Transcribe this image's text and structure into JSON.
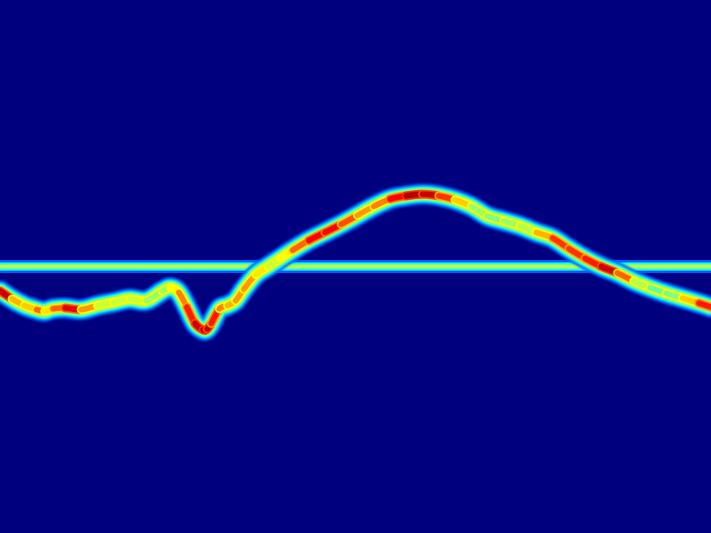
{
  "chart_data": {
    "type": "heatmap",
    "colormap": "jet",
    "background_color": "#00007f",
    "baseline": {
      "y": 0
    },
    "x": [
      0,
      15,
      30,
      45,
      55,
      65,
      80,
      100,
      120,
      140,
      160,
      180,
      200,
      210,
      220,
      230,
      240,
      250,
      255,
      260,
      270,
      280,
      290,
      300,
      315,
      330,
      345,
      360,
      380,
      400,
      420,
      440,
      460,
      480,
      500,
      520,
      540,
      560,
      580,
      600,
      620,
      640,
      660,
      680,
      700,
      720,
      740,
      760,
      780,
      800,
      820,
      840,
      860,
      875
    ],
    "y": [
      -30,
      -40,
      -48,
      -53,
      -55,
      -52,
      -51,
      -53,
      -48,
      -44,
      -40,
      -42,
      -30,
      -26,
      -32,
      -50,
      -70,
      -78,
      -77,
      -70,
      -52,
      -48,
      -42,
      -28,
      -10,
      0,
      10,
      20,
      32,
      42,
      52,
      63,
      74,
      83,
      87,
      89,
      87,
      82,
      74,
      62,
      56,
      50,
      42,
      35,
      22,
      10,
      0,
      -8,
      -18,
      -26,
      -33,
      -39,
      -45,
      -50
    ],
    "intensity": [
      0.95,
      0.9,
      0.5,
      0.85,
      0.7,
      0.6,
      0.95,
      0.85,
      0.6,
      0.55,
      0.6,
      0.55,
      0.5,
      0.55,
      0.7,
      0.8,
      0.9,
      0.95,
      0.95,
      0.9,
      0.8,
      0.7,
      0.7,
      0.75,
      0.7,
      0.6,
      0.55,
      0.7,
      0.85,
      0.9,
      0.85,
      0.75,
      0.7,
      0.8,
      0.95,
      0.95,
      0.9,
      0.75,
      0.6,
      0.45,
      0.55,
      0.5,
      0.6,
      0.8,
      0.85,
      0.8,
      0.9,
      0.95,
      0.6,
      0.5,
      0.45,
      0.55,
      0.8,
      0.9
    ],
    "xlim": [
      0,
      875
    ],
    "ylim": [
      -328,
      328
    ]
  }
}
